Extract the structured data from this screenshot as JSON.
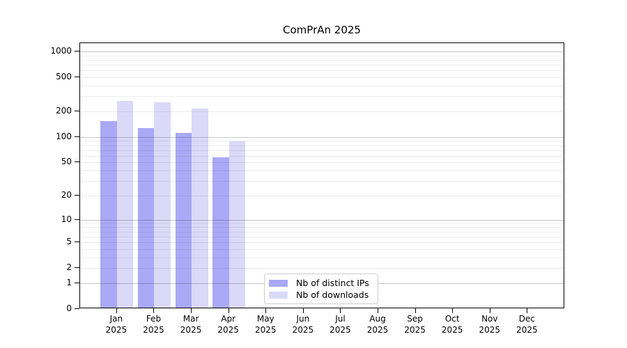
{
  "chart_data": {
    "type": "bar",
    "title": "ComPrAn 2025",
    "year_label": "2025",
    "categories": [
      "Jan",
      "Feb",
      "Mar",
      "Apr",
      "May",
      "Jun",
      "Jul",
      "Aug",
      "Sep",
      "Oct",
      "Nov",
      "Dec"
    ],
    "series": [
      {
        "name": "Nb of distinct IPs",
        "color": "#a9a9f6",
        "values": [
          148,
          123,
          108,
          55,
          0,
          0,
          0,
          0,
          0,
          0,
          0,
          0
        ]
      },
      {
        "name": "Nb of downloads",
        "color": "#dadaf8",
        "values": [
          257,
          246,
          206,
          85,
          0,
          0,
          0,
          0,
          0,
          0,
          0,
          0
        ]
      }
    ],
    "y_scale": "log1p",
    "y_ticks": [
      0,
      1,
      2,
      5,
      10,
      20,
      50,
      100,
      200,
      500,
      1000
    ],
    "y_major_gridlines": [
      1,
      10,
      100,
      1000
    ],
    "y_minor_gridlines": [
      2,
      3,
      4,
      5,
      6,
      7,
      8,
      9,
      20,
      30,
      40,
      50,
      60,
      70,
      80,
      90,
      200,
      300,
      400,
      500,
      600,
      700,
      800,
      900
    ],
    "ylim": [
      0,
      1250
    ],
    "xlabel": "",
    "ylabel": "",
    "grid": "both",
    "legend_position": "lower-center-inside"
  },
  "colors": {
    "axis": "#000000",
    "grid_major": "#c7c7c7",
    "grid_minor": "#ededed",
    "legend_border": "#cccccc",
    "background": "#ffffff"
  }
}
